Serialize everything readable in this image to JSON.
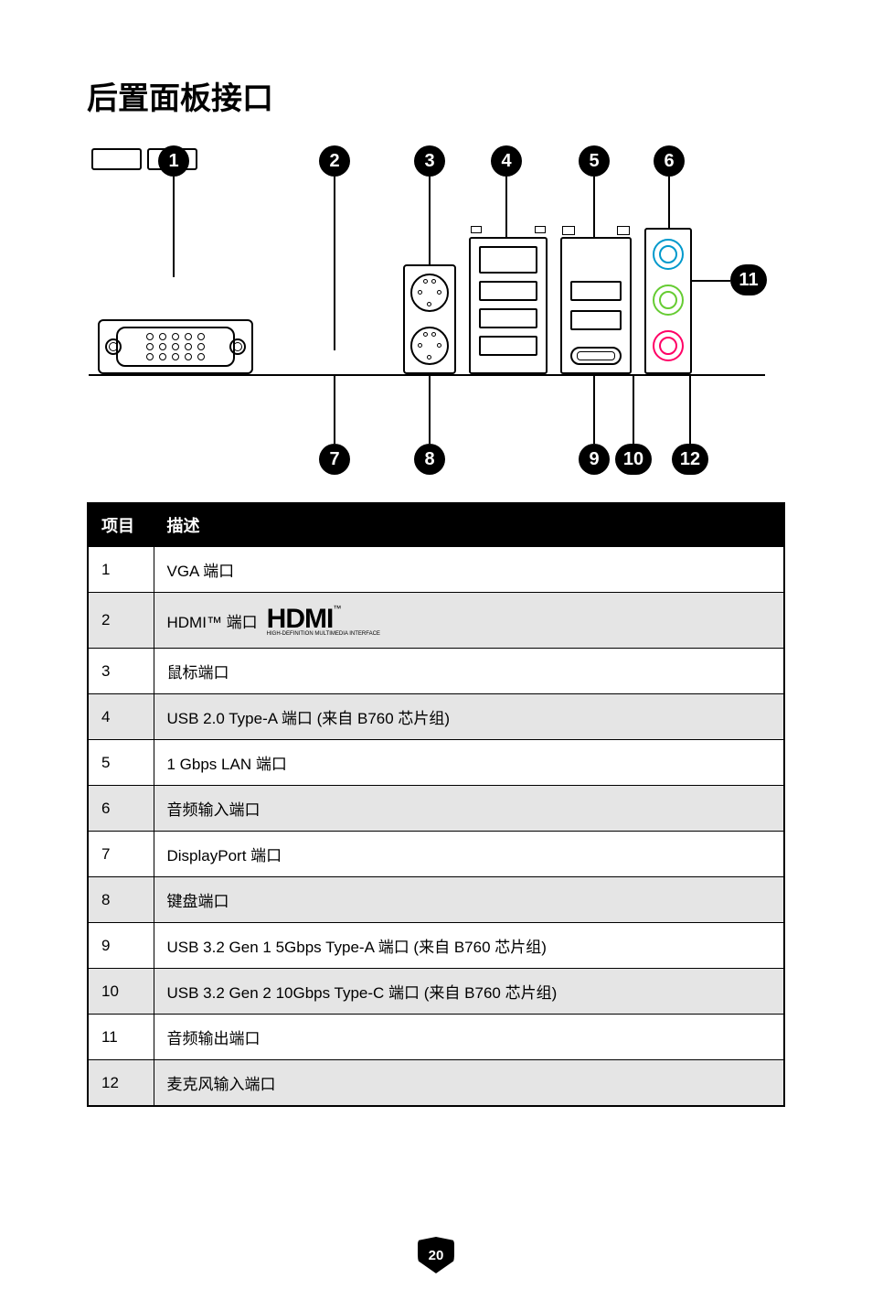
{
  "title": "后置面板接口",
  "page_number": "20",
  "callouts": {
    "b1": "1",
    "b2": "2",
    "b3": "3",
    "b4": "4",
    "b5": "5",
    "b6": "6",
    "b7": "7",
    "b8": "8",
    "b9": "9",
    "b10": "10",
    "b11": "11",
    "b12": "12"
  },
  "audio_colors": {
    "line_in": "#0099cc",
    "line_out": "#66cc33",
    "mic": "#ff0066"
  },
  "table": {
    "header_item": "项目",
    "header_desc": "描述",
    "rows": [
      {
        "num": "1",
        "desc": "VGA 端口",
        "shaded": false
      },
      {
        "num": "2",
        "desc_prefix": "HDMI™ 端口",
        "is_hdmi": true,
        "shaded": true
      },
      {
        "num": "3",
        "desc": "鼠标端口",
        "shaded": false
      },
      {
        "num": "4",
        "desc": "USB 2.0 Type-A 端口 (来自 B760 芯片组)",
        "shaded": true
      },
      {
        "num": "5",
        "desc": "1 Gbps LAN 端口",
        "shaded": false
      },
      {
        "num": "6",
        "desc": "音频输入端口",
        "shaded": true
      },
      {
        "num": "7",
        "desc": "DisplayPort 端口",
        "shaded": false
      },
      {
        "num": "8",
        "desc": "键盘端口",
        "shaded": true
      },
      {
        "num": "9",
        "desc": "USB 3.2 Gen 1 5Gbps Type-A 端口 (来自 B760 芯片组)",
        "shaded": false
      },
      {
        "num": "10",
        "desc": "USB 3.2 Gen 2 10Gbps Type-C 端口 (来自 B760 芯片组)",
        "shaded": true
      },
      {
        "num": "11",
        "desc": "音频输出端口",
        "shaded": false
      },
      {
        "num": "12",
        "desc": "麦克风输入端口",
        "shaded": true
      }
    ]
  },
  "hdmi_logo": {
    "main": "HDMI",
    "sub": "HIGH-DEFINITION MULTIMEDIA INTERFACE"
  }
}
